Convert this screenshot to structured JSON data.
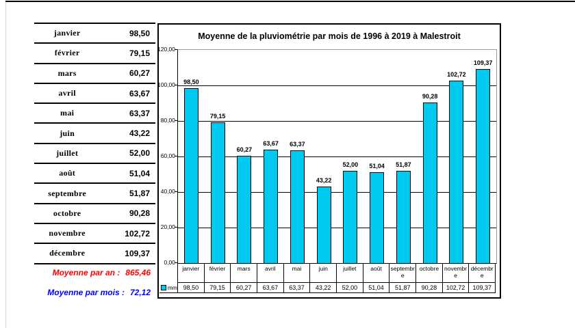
{
  "colors": {
    "bar": "#00C9F0",
    "red": "#FF0000",
    "blue": "#0000FF",
    "plot_border": "#9B9B9B"
  },
  "left_table": {
    "rows": [
      {
        "month": "janvier",
        "value": "98,50"
      },
      {
        "month": "février",
        "value": "79,15"
      },
      {
        "month": "mars",
        "value": "60,27"
      },
      {
        "month": "avril",
        "value": "63,67"
      },
      {
        "month": "mai",
        "value": "63,37"
      },
      {
        "month": "juin",
        "value": "43,22"
      },
      {
        "month": "juillet",
        "value": "52,00"
      },
      {
        "month": "août",
        "value": "51,04"
      },
      {
        "month": "septembre",
        "value": "51,87"
      },
      {
        "month": "octobre",
        "value": "90,28"
      },
      {
        "month": "novembre",
        "value": "102,72"
      },
      {
        "month": "décembre",
        "value": "109,37"
      }
    ],
    "summary": [
      {
        "label": "Moyenne par an :",
        "value": "865,46"
      },
      {
        "label": "Moyenne par mois :",
        "value": "72,12"
      }
    ]
  },
  "chart_data": {
    "type": "bar",
    "title": "Moyenne de la pluviométrie par mois de 1996 à 2019 à Malestroit",
    "categories": [
      "janvier",
      "février",
      "mars",
      "avril",
      "mai",
      "juin",
      "juillet",
      "août",
      "septembre",
      "octobre",
      "novembre",
      "décembre"
    ],
    "series": [
      {
        "name": "mm",
        "values": [
          98.5,
          79.15,
          60.27,
          63.67,
          63.37,
          43.22,
          52.0,
          51.04,
          51.87,
          90.28,
          102.72,
          109.37
        ]
      }
    ],
    "value_labels": [
      "98,50",
      "79,15",
      "60,27",
      "63,67",
      "63,37",
      "43,22",
      "52,00",
      "51,04",
      "51,87",
      "90,28",
      "102,72",
      "109,37"
    ],
    "ylim": [
      0,
      120
    ],
    "ytick_interval": 20,
    "ytick_labels": [
      "0,00",
      "20,00",
      "40,00",
      "60,00",
      "80,00",
      "100,00",
      "120,00"
    ],
    "legend_label": "mm",
    "legend_position": "data-table-left",
    "grid": true,
    "data_table_shown": true,
    "bar_color": "#00C9F0"
  }
}
